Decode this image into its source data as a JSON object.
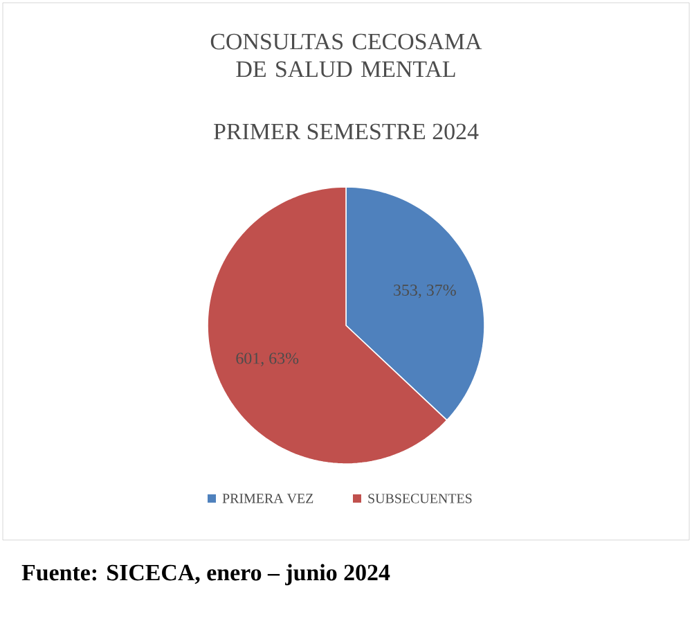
{
  "chart_data": {
    "type": "pie",
    "title": "CONSULTAS CECOSAMA DE SALUD MENTAL",
    "subtitle": "PRIMER SEMESTRE 2024",
    "categories": [
      "PRIMERA VEZ",
      "SUBSECUENTES"
    ],
    "values": [
      353,
      601
    ],
    "colors": [
      "#4f81bd",
      "#c0504d"
    ],
    "value_labels": [
      "353, 37%",
      "601, 63%"
    ],
    "legend": "bottom",
    "annotations": [
      "**Fuente: SICECA, enero – junio 2024**"
    ]
  }
}
